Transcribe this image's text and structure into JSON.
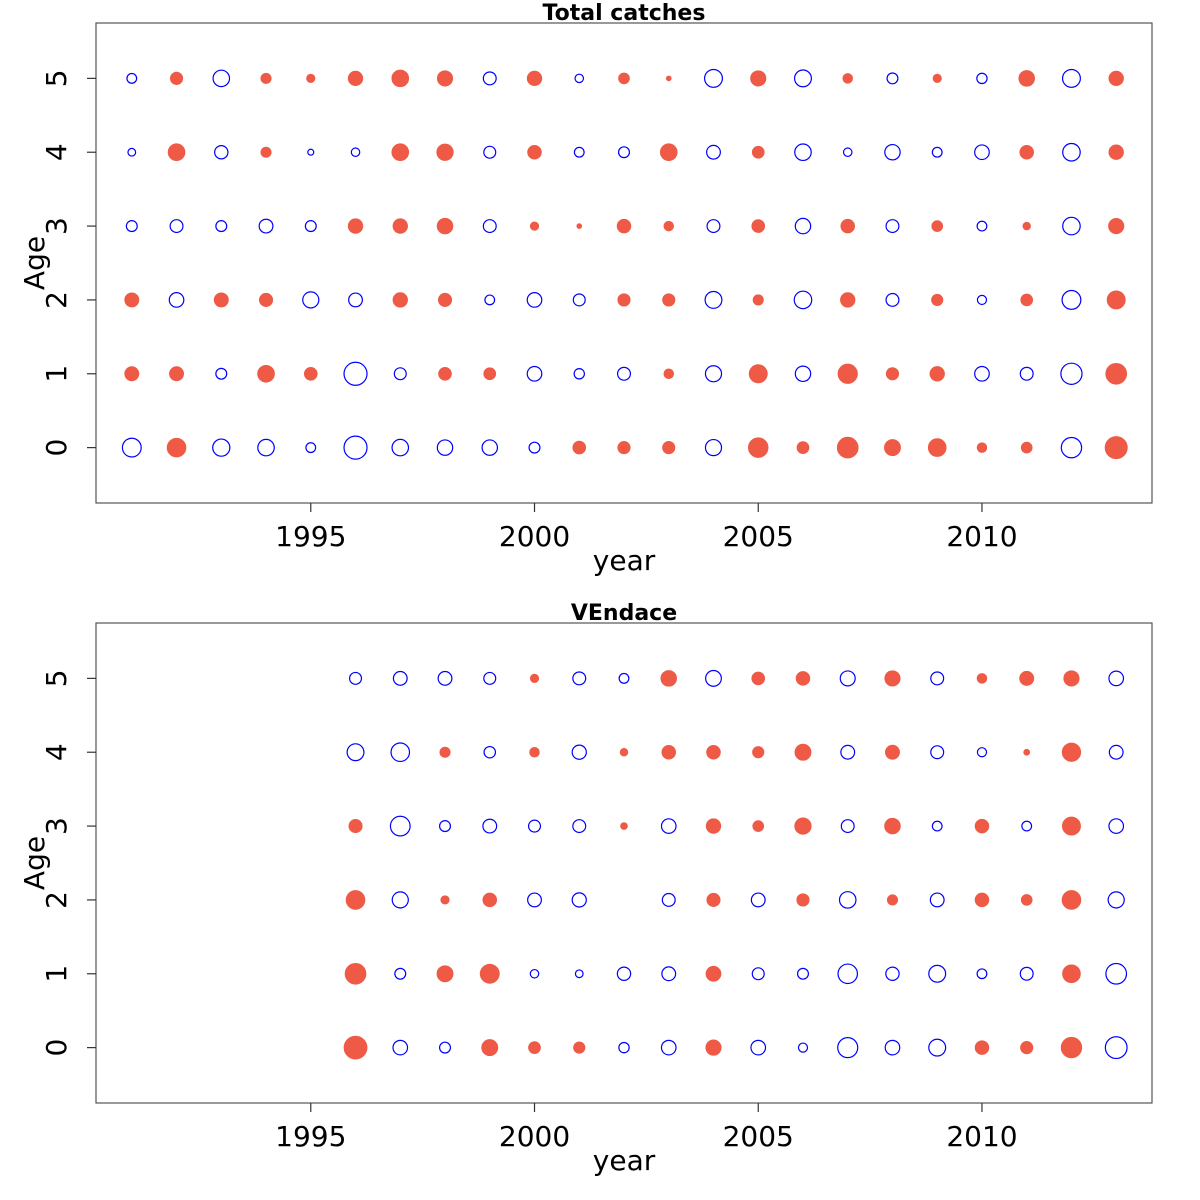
{
  "colors": {
    "positive": "#ee5a45",
    "negative": "#0000ff"
  },
  "chart_data": [
    {
      "type": "bubble",
      "title": "Total catches",
      "xlabel": "year",
      "ylabel": "Age",
      "xlim": [
        1990.2,
        2013.8
      ],
      "ylim": [
        -0.75,
        5.75
      ],
      "xticks": [
        1995,
        2000,
        2005,
        2010
      ],
      "yticks": [
        0,
        1,
        2,
        3,
        4,
        5
      ],
      "years": [
        1991,
        1992,
        1993,
        1994,
        1995,
        1996,
        1997,
        1998,
        1999,
        2000,
        2001,
        2002,
        2003,
        2004,
        2005,
        2006,
        2007,
        2008,
        2009,
        2010,
        2011,
        2012,
        2013
      ],
      "ages": [
        0,
        1,
        2,
        3,
        4,
        5
      ],
      "residuals": [
        [
          -3.0,
          3.0,
          -2.5,
          -2.3,
          -0.8,
          -4.5,
          -2.3,
          -2.0,
          -2.0,
          -1.0,
          1.4,
          1.3,
          1.3,
          -2.2,
          3.3,
          1.2,
          3.7,
          2.2,
          2.7,
          0.8,
          1.0,
          -3.5,
          4.2
        ],
        [
          1.7,
          1.7,
          -1.0,
          2.4,
          1.4,
          -4.5,
          -1.2,
          1.4,
          1.2,
          -1.8,
          -0.9,
          -1.4,
          0.8,
          -2.2,
          2.8,
          -2.0,
          3.2,
          1.3,
          1.8,
          -1.8,
          -1.4,
          -3.8,
          3.7
        ],
        [
          1.7,
          -1.8,
          1.7,
          1.5,
          -2.2,
          -1.6,
          1.8,
          1.5,
          -0.8,
          -1.8,
          -1.2,
          1.3,
          1.3,
          -2.4,
          0.9,
          -2.6,
          1.8,
          -1.4,
          1.1,
          -0.7,
          1.2,
          -3.0,
          2.8
        ],
        [
          -1.0,
          -1.4,
          -1.0,
          -1.6,
          -1.0,
          1.8,
          1.8,
          2.1,
          -1.4,
          0.6,
          0.2,
          1.6,
          0.8,
          -1.4,
          1.4,
          -2.0,
          1.6,
          -1.4,
          1.0,
          -0.8,
          0.5,
          -2.6,
          2.0
        ],
        [
          -0.5,
          2.4,
          -1.5,
          0.9,
          -0.3,
          -0.6,
          2.4,
          2.3,
          -1.2,
          1.6,
          -0.8,
          -1.0,
          2.4,
          -1.6,
          1.2,
          -2.3,
          -0.6,
          -2.0,
          -0.8,
          -1.8,
          1.6,
          -2.6,
          1.8
        ],
        [
          -0.8,
          1.3,
          -2.3,
          0.9,
          0.6,
          1.8,
          2.4,
          2.0,
          -1.4,
          1.8,
          -0.6,
          1.0,
          0.2,
          -2.7,
          2.0,
          -2.4,
          0.8,
          -1.0,
          0.6,
          -0.9,
          2.1,
          -2.7,
          1.8
        ]
      ]
    },
    {
      "type": "bubble",
      "title": "VEndace",
      "xlabel": "year",
      "ylabel": "Age",
      "xlim": [
        1990.2,
        2013.8
      ],
      "ylim": [
        -0.75,
        5.75
      ],
      "xticks": [
        1995,
        2000,
        2005,
        2010
      ],
      "yticks": [
        0,
        1,
        2,
        3,
        4,
        5
      ],
      "years": [
        1996,
        1997,
        1998,
        1999,
        2000,
        2001,
        2002,
        2003,
        2004,
        2005,
        2006,
        2007,
        2008,
        2009,
        2010,
        2011,
        2012,
        2013
      ],
      "ages": [
        0,
        1,
        2,
        3,
        4,
        5
      ],
      "residuals": [
        [
          4.5,
          -1.8,
          -1.0,
          2.2,
          1.2,
          1.1,
          -0.9,
          -1.8,
          2.0,
          -1.8,
          -0.7,
          -3.4,
          -1.8,
          -2.4,
          1.6,
          1.3,
          3.6,
          -4.0
        ],
        [
          3.7,
          -1.0,
          2.2,
          3.1,
          -0.6,
          -0.5,
          -1.5,
          -1.6,
          1.9,
          -1.2,
          -1.0,
          -3.2,
          -1.5,
          -2.4,
          -0.8,
          -1.4,
          2.7,
          -3.6
        ],
        [
          3.0,
          -2.2,
          0.6,
          1.6,
          -1.6,
          -1.7,
          0.0,
          -1.4,
          1.5,
          -1.6,
          1.3,
          -2.3,
          0.9,
          -1.6,
          1.6,
          1.0,
          3.0,
          -2.2
        ],
        [
          1.5,
          -3.3,
          -1.0,
          -1.6,
          -1.2,
          -1.4,
          0.4,
          -1.8,
          1.8,
          1.0,
          2.3,
          -1.4,
          2.1,
          -0.8,
          1.6,
          -0.8,
          2.8,
          -1.8
        ],
        [
          -2.4,
          -2.9,
          0.9,
          -1.1,
          0.8,
          -1.7,
          0.5,
          1.6,
          1.6,
          1.1,
          2.2,
          -1.6,
          1.7,
          -1.4,
          -0.7,
          0.3,
          2.9,
          -1.6
        ],
        [
          -1.2,
          -1.6,
          -1.6,
          -1.2,
          0.6,
          -1.4,
          -0.8,
          2.1,
          -2.1,
          1.4,
          1.6,
          -1.9,
          2.0,
          -1.4,
          0.8,
          1.7,
          2.0,
          -1.8
        ]
      ]
    }
  ]
}
